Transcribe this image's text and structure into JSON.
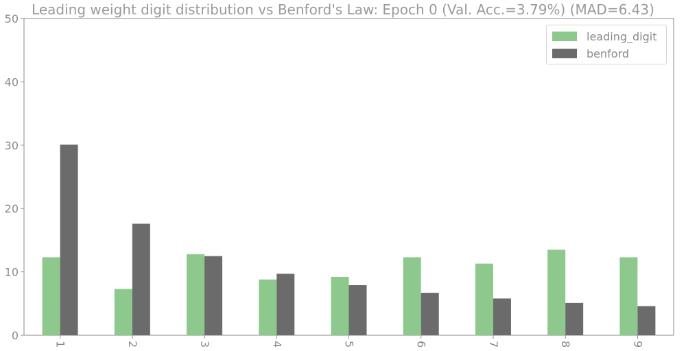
{
  "chart_data": {
    "type": "bar",
    "title": "Leading weight digit distribution vs Benford's Law: Epoch 0 (Val. Acc.=3.79%) (MAD=6.43)",
    "xlabel": "",
    "ylabel": "",
    "categories": [
      "1",
      "2",
      "3",
      "4",
      "5",
      "6",
      "7",
      "8",
      "9"
    ],
    "ylim": [
      0,
      50
    ],
    "yticks": [
      "0",
      "10",
      "20",
      "30",
      "40",
      "50"
    ],
    "grid": false,
    "legend_position": "top-right",
    "series": [
      {
        "name": "leading_digit",
        "color": "#8dc98d",
        "values": [
          12.3,
          7.3,
          12.8,
          8.8,
          9.2,
          12.3,
          11.3,
          13.5,
          12.3
        ]
      },
      {
        "name": "benford",
        "color": "#6b6b6b",
        "values": [
          30.1,
          17.6,
          12.5,
          9.7,
          7.9,
          6.7,
          5.8,
          5.1,
          4.6
        ]
      }
    ]
  }
}
